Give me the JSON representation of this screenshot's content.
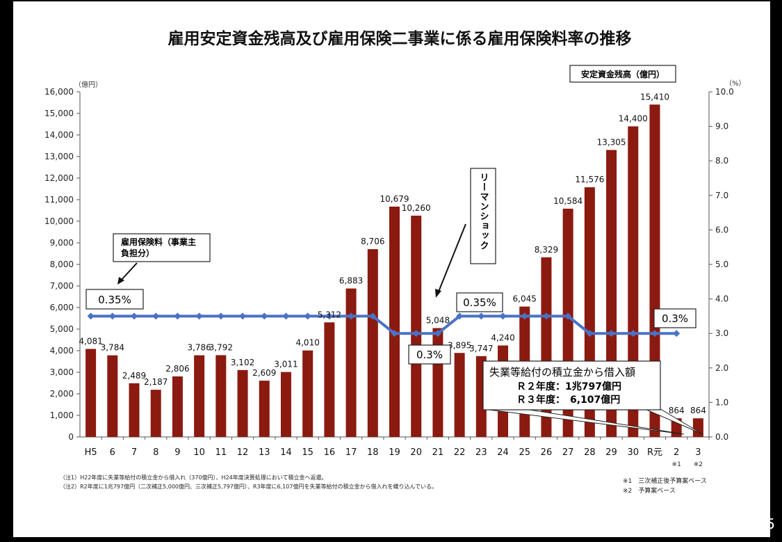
{
  "page_number": "5",
  "chart_data": {
    "type": "bar",
    "title": "雇用安定資金残高及び雇用保険二事業に係る雇用保険料率の推移",
    "left_unit": "（億円）",
    "right_unit": "（%）",
    "legend_bar": "安定資金残高（億円）",
    "categories": [
      "H5",
      "6",
      "7",
      "8",
      "9",
      "10",
      "11",
      "12",
      "13",
      "14",
      "15",
      "16",
      "17",
      "18",
      "19",
      "20",
      "21",
      "22",
      "23",
      "24",
      "25",
      "26",
      "27",
      "28",
      "29",
      "30",
      "R元",
      "2",
      "3"
    ],
    "category_notes": [
      "",
      "",
      "",
      "",
      "",
      "",
      "",
      "",
      "",
      "",
      "",
      "",
      "",
      "",
      "",
      "",
      "",
      "",
      "",
      "",
      "",
      "",
      "",
      "",
      "",
      "",
      "",
      "※1",
      "※2"
    ],
    "series": [
      {
        "name": "安定資金残高（億円）",
        "axis": "left",
        "values": [
          4081,
          3784,
          2489,
          2187,
          2806,
          3786,
          3792,
          3102,
          2609,
          3011,
          4010,
          5312,
          6883,
          8706,
          10679,
          10260,
          5048,
          3895,
          3747,
          4240,
          6045,
          8329,
          10584,
          11576,
          13305,
          14400,
          15410,
          864,
          864
        ],
        "labels": [
          "4,081",
          "3,784",
          "2,489",
          "2,187",
          "2,806",
          "3,786",
          "3,792",
          "3,102",
          "2,609",
          "3,011",
          "4,010",
          "5,312",
          "6,883",
          "8,706",
          "10,679",
          "10,260",
          "5,048",
          "3,895",
          "3,747",
          "4,240",
          "6,045",
          "8,329",
          "10,584",
          "11,576",
          "13,305",
          "14,400",
          "15,410",
          "864",
          "864"
        ],
        "color": "#8b1a10"
      },
      {
        "name": "雇用保険料（事業主負担分）",
        "axis": "right",
        "values": [
          3.5,
          3.5,
          3.5,
          3.5,
          3.5,
          3.5,
          3.5,
          3.5,
          3.5,
          3.5,
          3.5,
          3.5,
          3.5,
          3.5,
          3.0,
          3.0,
          3.0,
          3.5,
          3.5,
          3.5,
          3.5,
          3.5,
          3.5,
          3.0,
          3.0,
          3.0,
          3.0,
          3.0,
          null
        ],
        "color": "#4a72c4"
      }
    ],
    "ylim_left": [
      0,
      16000
    ],
    "left_ticks": [
      "0",
      "1,000",
      "2,000",
      "3,000",
      "4,000",
      "5,000",
      "6,000",
      "7,000",
      "8,000",
      "9,000",
      "10,000",
      "11,000",
      "12,000",
      "13,000",
      "14,000",
      "15,000",
      "16,000"
    ],
    "ylim_right": [
      0,
      10
    ],
    "right_ticks": [
      "0.0",
      "1.0",
      "2.0",
      "3.0",
      "4.0",
      "5.0",
      "6.0",
      "7.0",
      "8.0",
      "9.0",
      "10.0"
    ],
    "grid": false,
    "annotations": {
      "rate_callout": [
        "雇用保険料（事業主",
        "負担分）"
      ],
      "rate_labels": [
        "0.35%",
        "0.3%",
        "0.35%",
        "0.3%"
      ],
      "lehman": "リーマンショック",
      "loan_title": "失業等給付の積立金から借入額",
      "loan_r2": "Ｒ２年度：1兆797億円",
      "loan_r3": "Ｒ３年度：　6,107億円"
    },
    "notes": [
      "（注1）H22年度に失業等給付の積立金から借入れ（370億円）、H24年度決算処理において積立金へ返還。",
      "（注2）R2年度に1兆797億円（二次補正5,000億円、三次補正5,797億円）、R3年度に6,107億円を失業等給付の積立金から借入れを織り込んでいる。"
    ],
    "footnotes": [
      "※1　三次補正後予算案ベース",
      "※2　予算案ベース"
    ]
  }
}
